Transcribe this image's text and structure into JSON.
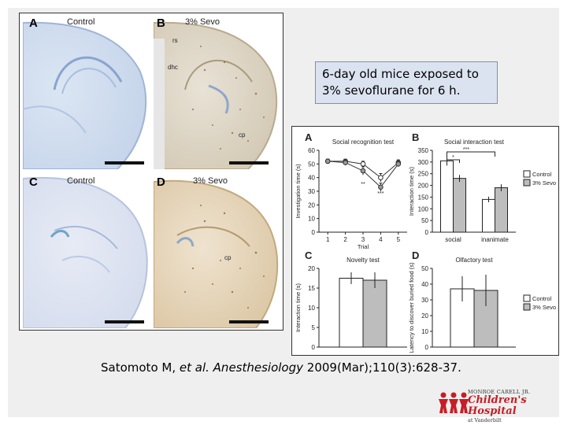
{
  "histology": {
    "panels": [
      {
        "letter": "A",
        "title": "Control"
      },
      {
        "letter": "B",
        "title": "3% Sevo"
      },
      {
        "letter": "C",
        "title": "Control"
      },
      {
        "letter": "D",
        "title": "3% Sevo"
      }
    ],
    "annotations": {
      "rs": "rs",
      "dhc": "dhc",
      "cp_b": "cp",
      "cp_d": "cp"
    }
  },
  "callout": {
    "line1": "6-day old mice exposed to",
    "line2": "3% sevoflurane for 6 h."
  },
  "citation": {
    "authors": "Satomoto M, ",
    "etal": "et al.",
    "journal": "Anesthesiology",
    "details": " 2009(Mar);110(3):628-37."
  },
  "logo": {
    "line1": "MONROE CARELL JR.",
    "line2": "Children's Hospital",
    "line3": "at Vanderbilt",
    "colors": {
      "red": "#c81d25"
    }
  },
  "chart_data": [
    {
      "panel": "A",
      "type": "line",
      "title": "Social recognition test",
      "xlabel": "Trial",
      "ylabel": "Investigation time (s)",
      "x": [
        1,
        2,
        3,
        4,
        5
      ],
      "xlim": [
        0.5,
        5.5
      ],
      "ylim": [
        0,
        60
      ],
      "yticks": [
        0,
        10,
        20,
        30,
        40,
        50,
        60
      ],
      "series": [
        {
          "values": [
            52,
            52,
            50,
            40,
            51
          ],
          "errors": [
            1.5,
            1.5,
            2,
            3,
            2
          ],
          "marker": "open"
        },
        {
          "values": [
            52,
            51,
            45,
            33,
            50
          ],
          "errors": [
            1.5,
            2,
            3,
            3,
            2
          ],
          "marker": "grey"
        }
      ],
      "annotations": [
        "**",
        "***"
      ]
    },
    {
      "panel": "B",
      "type": "bar",
      "title": "Social interaction test",
      "ylabel": "Interaction time (s)",
      "categories": [
        "social",
        "inanimate"
      ],
      "ylim": [
        0,
        350
      ],
      "yticks": [
        0,
        50,
        100,
        150,
        200,
        250,
        300,
        350
      ],
      "series": [
        {
          "name": "Control",
          "values": [
            305,
            140
          ],
          "errors": [
            20,
            12
          ],
          "color": "#ffffff"
        },
        {
          "name": "3% Sevo",
          "values": [
            230,
            190
          ],
          "errors": [
            15,
            15
          ],
          "color": "#bdbdbd"
        }
      ],
      "annotations": [
        "*",
        "***"
      ]
    },
    {
      "panel": "C",
      "type": "bar",
      "title": "Novelty test",
      "ylabel": "Interaction time (s)",
      "categories": [
        ""
      ],
      "ylim": [
        0,
        20
      ],
      "yticks": [
        0,
        5,
        10,
        15,
        20
      ],
      "series": [
        {
          "name": "Control",
          "values": [
            17.5
          ],
          "errors": [
            1.5
          ],
          "color": "#ffffff"
        },
        {
          "name": "3% Sevo",
          "values": [
            17
          ],
          "errors": [
            2
          ],
          "color": "#bdbdbd"
        }
      ]
    },
    {
      "panel": "D",
      "type": "bar",
      "title": "Olfactory test",
      "ylabel": "Latency to discover buried food (s)",
      "categories": [
        ""
      ],
      "ylim": [
        0,
        50
      ],
      "yticks": [
        0,
        10,
        20,
        30,
        40,
        50
      ],
      "series": [
        {
          "name": "Control",
          "values": [
            37
          ],
          "errors": [
            8
          ],
          "color": "#ffffff"
        },
        {
          "name": "3% Sevo",
          "values": [
            36
          ],
          "errors": [
            10
          ],
          "color": "#bdbdbd"
        }
      ]
    }
  ]
}
